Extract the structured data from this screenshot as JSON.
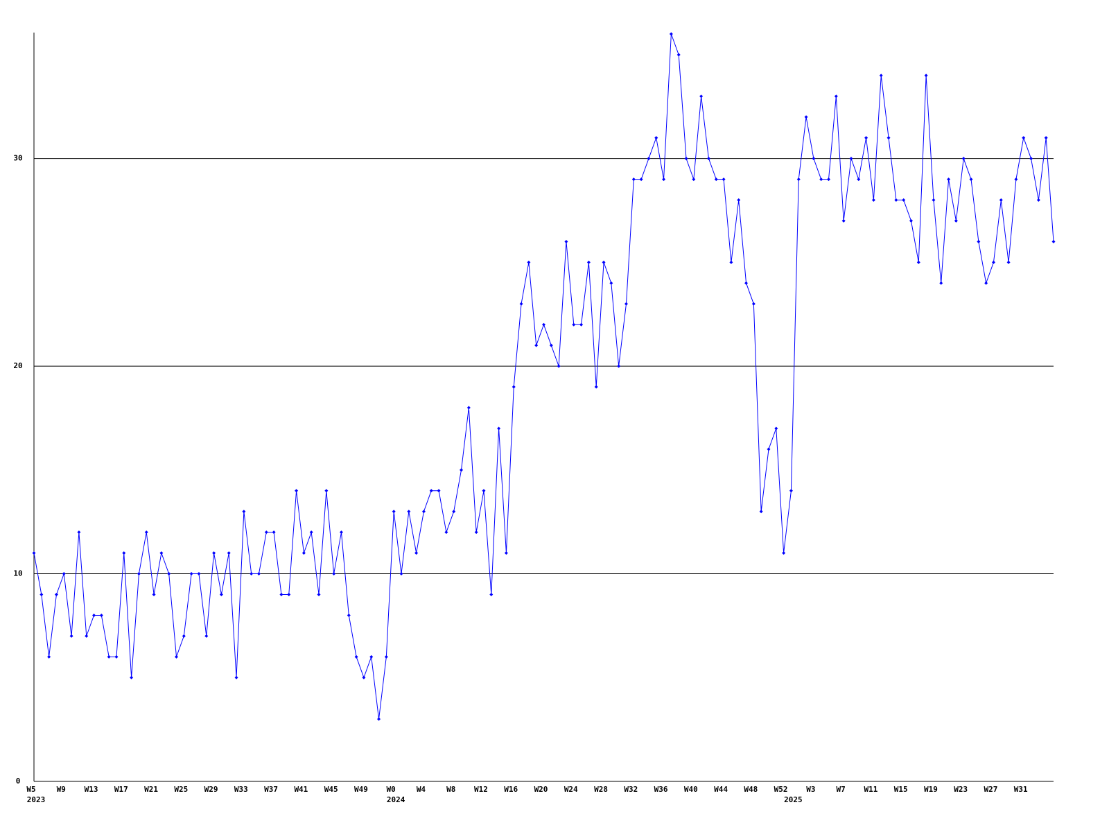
{
  "chart_data": {
    "type": "line",
    "categories": [
      "W5",
      null,
      null,
      null,
      "W9",
      null,
      null,
      null,
      "W13",
      null,
      null,
      null,
      "W17",
      null,
      null,
      null,
      "W21",
      null,
      null,
      null,
      "W25",
      null,
      null,
      null,
      "W29",
      null,
      null,
      null,
      "W33",
      null,
      null,
      null,
      "W37",
      null,
      null,
      null,
      "W41",
      null,
      null,
      null,
      "W45",
      null,
      null,
      null,
      "W49",
      null,
      null,
      null,
      "W0",
      null,
      null,
      null,
      "W4",
      null,
      null,
      null,
      "W8",
      null,
      null,
      null,
      "W12",
      null,
      null,
      null,
      "W16",
      null,
      null,
      null,
      "W20",
      null,
      null,
      null,
      "W24",
      null,
      null,
      null,
      "W28",
      null,
      null,
      null,
      "W32",
      null,
      null,
      null,
      "W36",
      null,
      null,
      null,
      "W40",
      null,
      null,
      null,
      "W44",
      null,
      null,
      null,
      "W48",
      null,
      null,
      null,
      "W52",
      null,
      null,
      null,
      "W3",
      null,
      null,
      null,
      "W7",
      null,
      null,
      null,
      "W11",
      null,
      null,
      null,
      "W15",
      null,
      null,
      null,
      "W19",
      null,
      null,
      null,
      "W23",
      null,
      null,
      null,
      "W27",
      null,
      null,
      null,
      "W31",
      null,
      null,
      null,
      null
    ],
    "category_groups": [
      "2023",
      null,
      null,
      null,
      null,
      null,
      null,
      null,
      null,
      null,
      null,
      null,
      null,
      null,
      null,
      null,
      null,
      null,
      null,
      null,
      null,
      null,
      null,
      null,
      null,
      null,
      null,
      null,
      null,
      null,
      null,
      null,
      null,
      null,
      null,
      null,
      null,
      null,
      null,
      null,
      null,
      null,
      null,
      null,
      null,
      null,
      null,
      null,
      "2024",
      null,
      null,
      null,
      null,
      null,
      null,
      null,
      null,
      null,
      null,
      null,
      null,
      null,
      null,
      null,
      null,
      null,
      null,
      null,
      null,
      null,
      null,
      null,
      null,
      null,
      null,
      null,
      null,
      null,
      null,
      null,
      null,
      null,
      null,
      null,
      null,
      null,
      null,
      null,
      null,
      null,
      null,
      null,
      null,
      null,
      null,
      null,
      null,
      null,
      null,
      null,
      null,
      "2025",
      null,
      null,
      null,
      null,
      null,
      null,
      null,
      null,
      null,
      null,
      null,
      null,
      null,
      null,
      null,
      null,
      null,
      null,
      null,
      null,
      null,
      null,
      null,
      null,
      null,
      null,
      null,
      null,
      null,
      null,
      null,
      null,
      null,
      null,
      null
    ],
    "series": [
      {
        "color": "#0000ff",
        "values": [
          11,
          9,
          6,
          9,
          10,
          7,
          12,
          7,
          8,
          8,
          6,
          6,
          11,
          5,
          10,
          12,
          9,
          11,
          10,
          6,
          7,
          10,
          10,
          7,
          11,
          9,
          11,
          5,
          13,
          10,
          10,
          12,
          12,
          9,
          9,
          14,
          11,
          12,
          9,
          14,
          10,
          12,
          8,
          6,
          5,
          6,
          3,
          6,
          13,
          10,
          13,
          11,
          13,
          14,
          14,
          12,
          13,
          15,
          18,
          12,
          14,
          9,
          17,
          11,
          19,
          23,
          25,
          21,
          22,
          21,
          20,
          26,
          22,
          22,
          25,
          19,
          25,
          24,
          20,
          23,
          29,
          29,
          30,
          31,
          29,
          36,
          35,
          30,
          29,
          33,
          30,
          29,
          29,
          25,
          28,
          24,
          23,
          13,
          16,
          17,
          11,
          14,
          29,
          32,
          30,
          29,
          29,
          33,
          27,
          30,
          29,
          31,
          28,
          34,
          31,
          28,
          28,
          27,
          25,
          34,
          28,
          24,
          29,
          27,
          30,
          29,
          26,
          24,
          25,
          28,
          25,
          29,
          31,
          30,
          28,
          31,
          26
        ]
      }
    ],
    "ylim": [
      0,
      36
    ],
    "yticks": [
      0,
      10,
      20,
      30
    ],
    "grid": true
  }
}
